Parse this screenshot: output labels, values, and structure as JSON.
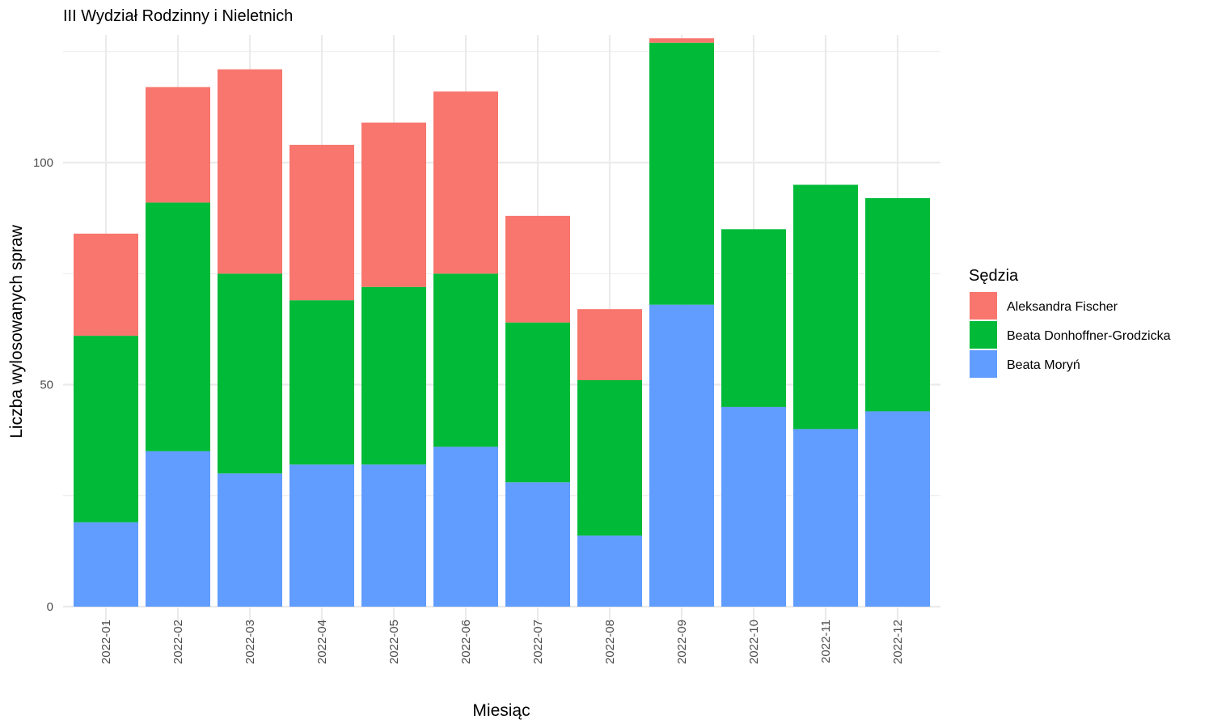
{
  "chart_data": {
    "type": "bar",
    "stacked": true,
    "title": "III Wydział Rodzinny i Nieletnich",
    "xlabel": "Miesiąc",
    "ylabel": "Liczba wylosowanych spraw",
    "categories": [
      "2022-01",
      "2022-02",
      "2022-03",
      "2022-04",
      "2022-05",
      "2022-06",
      "2022-07",
      "2022-08",
      "2022-09",
      "2022-10",
      "2022-11",
      "2022-12"
    ],
    "series": [
      {
        "name": "Beata Moryń",
        "color": "#619CFF",
        "values": [
          19,
          35,
          30,
          32,
          32,
          36,
          28,
          16,
          68,
          45,
          40,
          44
        ]
      },
      {
        "name": "Beata Donhoffner-Grodzicka",
        "color": "#00BA38",
        "values": [
          42,
          56,
          45,
          37,
          40,
          39,
          36,
          35,
          59,
          40,
          55,
          48
        ]
      },
      {
        "name": "Aleksandra Fischer",
        "color": "#F8766D",
        "values": [
          23,
          26,
          46,
          35,
          37,
          41,
          24,
          16,
          1,
          0,
          0,
          0
        ]
      }
    ],
    "ylim": [
      0,
      128
    ],
    "yticks": [
      0,
      50,
      100
    ],
    "legend": {
      "title": "Sędzia",
      "position": "right",
      "order": [
        "Aleksandra Fischer",
        "Beata Donhoffner-Grodzicka",
        "Beata Moryń"
      ]
    },
    "grid": true
  }
}
